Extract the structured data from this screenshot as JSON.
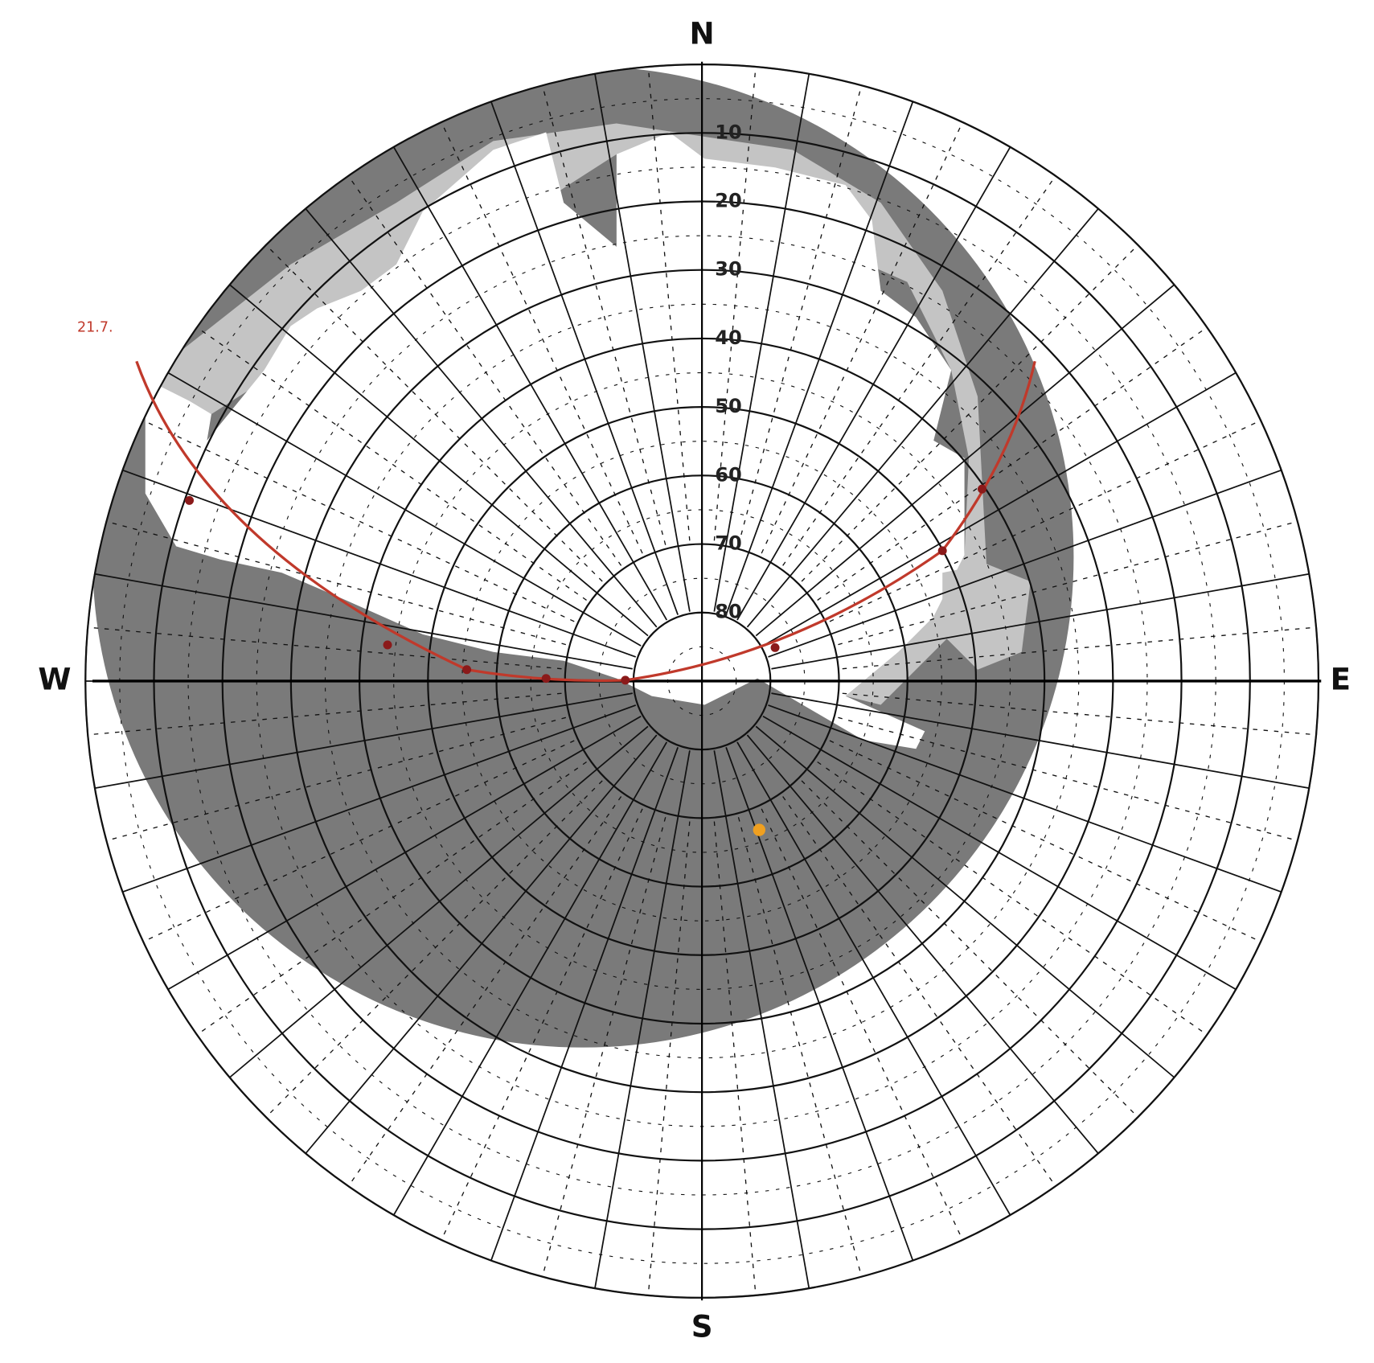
{
  "compass": {
    "north": "N",
    "south": "S",
    "west": "W",
    "east": "E"
  },
  "altitude_rings": [
    10,
    20,
    30,
    40,
    50,
    60,
    70,
    80
  ],
  "sun_path": {
    "label": "21.7."
  }
}
